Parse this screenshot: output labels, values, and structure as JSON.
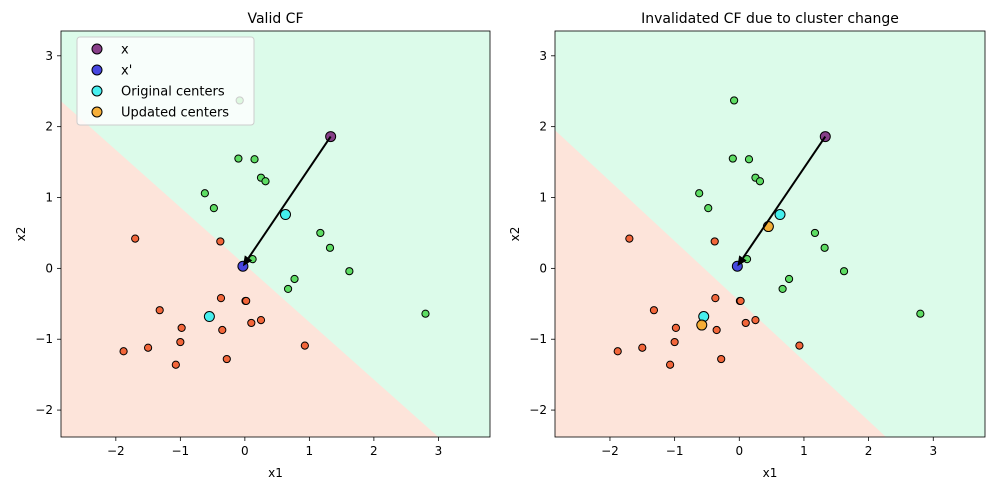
{
  "chart_data": [
    {
      "type": "scatter",
      "title": "Valid CF",
      "xlabel": "x1",
      "ylabel": "x2",
      "xlim": [
        -2.85,
        3.8
      ],
      "ylim": [
        -2.38,
        3.35
      ],
      "xticks": [
        -2,
        -1,
        0,
        1,
        2,
        3
      ],
      "yticks": [
        -2,
        -1,
        0,
        1,
        2,
        3
      ],
      "grid": false,
      "legend_position": "top-left",
      "regions": [
        {
          "name": "cluster-0",
          "color": "#fde4da"
        },
        {
          "name": "cluster-1",
          "color": "#dcfbea"
        }
      ],
      "boundary_points": [
        [
          -2.85,
          2.36
        ],
        [
          3.0,
          -2.38
        ]
      ],
      "series": [
        {
          "name": "cluster-1 points",
          "color": "#5ddc63",
          "points": [
            [
              -0.08,
              2.37
            ],
            [
              -0.1,
              1.55
            ],
            [
              0.15,
              1.54
            ],
            [
              0.25,
              1.28
            ],
            [
              0.32,
              1.23
            ],
            [
              -0.62,
              1.06
            ],
            [
              -0.48,
              0.85
            ],
            [
              1.17,
              0.5
            ],
            [
              1.32,
              0.29
            ],
            [
              0.12,
              0.13
            ],
            [
              0.77,
              -0.15
            ],
            [
              0.67,
              -0.29
            ],
            [
              1.62,
              -0.04
            ],
            [
              2.8,
              -0.64
            ]
          ]
        },
        {
          "name": "cluster-0 points",
          "color": "#f2663a",
          "points": [
            [
              -1.7,
              0.42
            ],
            [
              -0.38,
              0.38
            ],
            [
              -0.37,
              -0.42
            ],
            [
              0.01,
              -0.46
            ],
            [
              0.02,
              -0.46
            ],
            [
              -1.32,
              -0.59
            ],
            [
              -0.98,
              -0.84
            ],
            [
              0.25,
              -0.73
            ],
            [
              0.1,
              -0.77
            ],
            [
              -0.35,
              -0.87
            ],
            [
              -1.0,
              -1.04
            ],
            [
              -1.5,
              -1.12
            ],
            [
              -1.88,
              -1.17
            ],
            [
              -0.28,
              -1.28
            ],
            [
              -1.07,
              -1.36
            ],
            [
              0.93,
              -1.09
            ]
          ]
        },
        {
          "name": "x",
          "color": "#7b2a7c",
          "points": [
            [
              1.33,
              1.86
            ]
          ]
        },
        {
          "name": "x'",
          "color": "#3333dd",
          "points": [
            [
              -0.03,
              0.03
            ]
          ]
        },
        {
          "name": "Original centers",
          "color": "#33eeee",
          "points": [
            [
              0.63,
              0.76
            ],
            [
              -0.55,
              -0.68
            ]
          ]
        },
        {
          "name": "Updated centers",
          "color": "#f5a623",
          "points": []
        }
      ],
      "arrow": {
        "from": [
          1.33,
          1.86
        ],
        "to": [
          -0.03,
          0.03
        ]
      },
      "legend": [
        {
          "label": "x",
          "color": "#7b2a7c"
        },
        {
          "label": "x'",
          "color": "#3333dd"
        },
        {
          "label": "Original centers",
          "color": "#33eeee"
        },
        {
          "label": "Updated centers",
          "color": "#f5a623"
        }
      ]
    },
    {
      "type": "scatter",
      "title": "Invalidated CF due to cluster change",
      "xlabel": "x1",
      "ylabel": "x2",
      "xlim": [
        -2.85,
        3.8
      ],
      "ylim": [
        -2.38,
        3.35
      ],
      "xticks": [
        -2,
        -1,
        0,
        1,
        2,
        3
      ],
      "yticks": [
        -2,
        -1,
        0,
        1,
        2,
        3
      ],
      "grid": false,
      "legend_position": "none",
      "regions": [
        {
          "name": "cluster-0",
          "color": "#fde4da"
        },
        {
          "name": "cluster-1",
          "color": "#dcfbea"
        }
      ],
      "boundary_points": [
        [
          -2.85,
          1.95
        ],
        [
          2.27,
          -2.38
        ]
      ],
      "series": [
        {
          "name": "cluster-1 points",
          "color": "#5ddc63",
          "points": [
            [
              -0.08,
              2.37
            ],
            [
              -0.1,
              1.55
            ],
            [
              0.15,
              1.54
            ],
            [
              0.25,
              1.28
            ],
            [
              0.32,
              1.23
            ],
            [
              -0.62,
              1.06
            ],
            [
              -0.48,
              0.85
            ],
            [
              1.17,
              0.5
            ],
            [
              1.32,
              0.29
            ],
            [
              0.12,
              0.13
            ],
            [
              0.77,
              -0.15
            ],
            [
              0.67,
              -0.29
            ],
            [
              1.62,
              -0.04
            ],
            [
              2.8,
              -0.64
            ]
          ]
        },
        {
          "name": "cluster-0 points",
          "color": "#f2663a",
          "points": [
            [
              -1.7,
              0.42
            ],
            [
              -0.38,
              0.38
            ],
            [
              -0.37,
              -0.42
            ],
            [
              0.01,
              -0.46
            ],
            [
              0.02,
              -0.46
            ],
            [
              -1.32,
              -0.59
            ],
            [
              -0.98,
              -0.84
            ],
            [
              0.25,
              -0.73
            ],
            [
              0.1,
              -0.77
            ],
            [
              -0.35,
              -0.87
            ],
            [
              -1.0,
              -1.04
            ],
            [
              -1.5,
              -1.12
            ],
            [
              -1.88,
              -1.17
            ],
            [
              -0.28,
              -1.28
            ],
            [
              -1.07,
              -1.36
            ],
            [
              0.93,
              -1.09
            ]
          ]
        },
        {
          "name": "x",
          "color": "#7b2a7c",
          "points": [
            [
              1.33,
              1.86
            ]
          ]
        },
        {
          "name": "x'",
          "color": "#3333dd",
          "points": [
            [
              -0.03,
              0.03
            ]
          ]
        },
        {
          "name": "Original centers",
          "color": "#33eeee",
          "points": [
            [
              0.63,
              0.76
            ],
            [
              -0.55,
              -0.68
            ]
          ]
        },
        {
          "name": "Updated centers",
          "color": "#f5a623",
          "points": [
            [
              0.45,
              0.59
            ],
            [
              -0.58,
              -0.8
            ]
          ]
        }
      ],
      "arrow": {
        "from": [
          1.33,
          1.86
        ],
        "to": [
          -0.03,
          0.03
        ]
      },
      "legend": []
    }
  ]
}
